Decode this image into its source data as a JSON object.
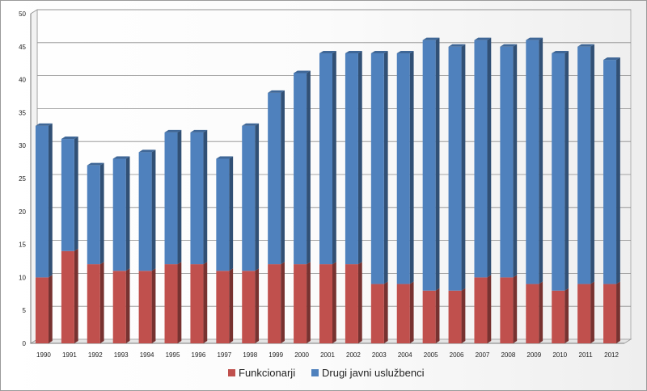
{
  "chart_data": {
    "type": "bar",
    "stacked": true,
    "title": "",
    "xlabel": "",
    "ylabel": "",
    "ylim": [
      0,
      50
    ],
    "ytick_step": 5,
    "grid": true,
    "legend_position": "bottom",
    "categories": [
      "1990",
      "1991",
      "1992",
      "1993",
      "1994",
      "1995",
      "1996",
      "1997",
      "1998",
      "1999",
      "2000",
      "2001",
      "2002",
      "2003",
      "2004",
      "2005",
      "2006",
      "2007",
      "2008",
      "2009",
      "2010",
      "2011",
      "2012"
    ],
    "series": [
      {
        "name": "Funkcionarji",
        "color": "#c0504d",
        "values": [
          10,
          14,
          12,
          11,
          11,
          12,
          12,
          11,
          11,
          12,
          12,
          12,
          12,
          9,
          9,
          8,
          8,
          10,
          10,
          9,
          8,
          9,
          9
        ]
      },
      {
        "name": "Drugi javni uslužbenci",
        "color": "#4f81bd",
        "values": [
          23,
          17,
          15,
          17,
          18,
          20,
          20,
          17,
          22,
          26,
          29,
          32,
          32,
          35,
          35,
          38,
          37,
          36,
          35,
          37,
          36,
          36,
          34
        ]
      }
    ]
  }
}
